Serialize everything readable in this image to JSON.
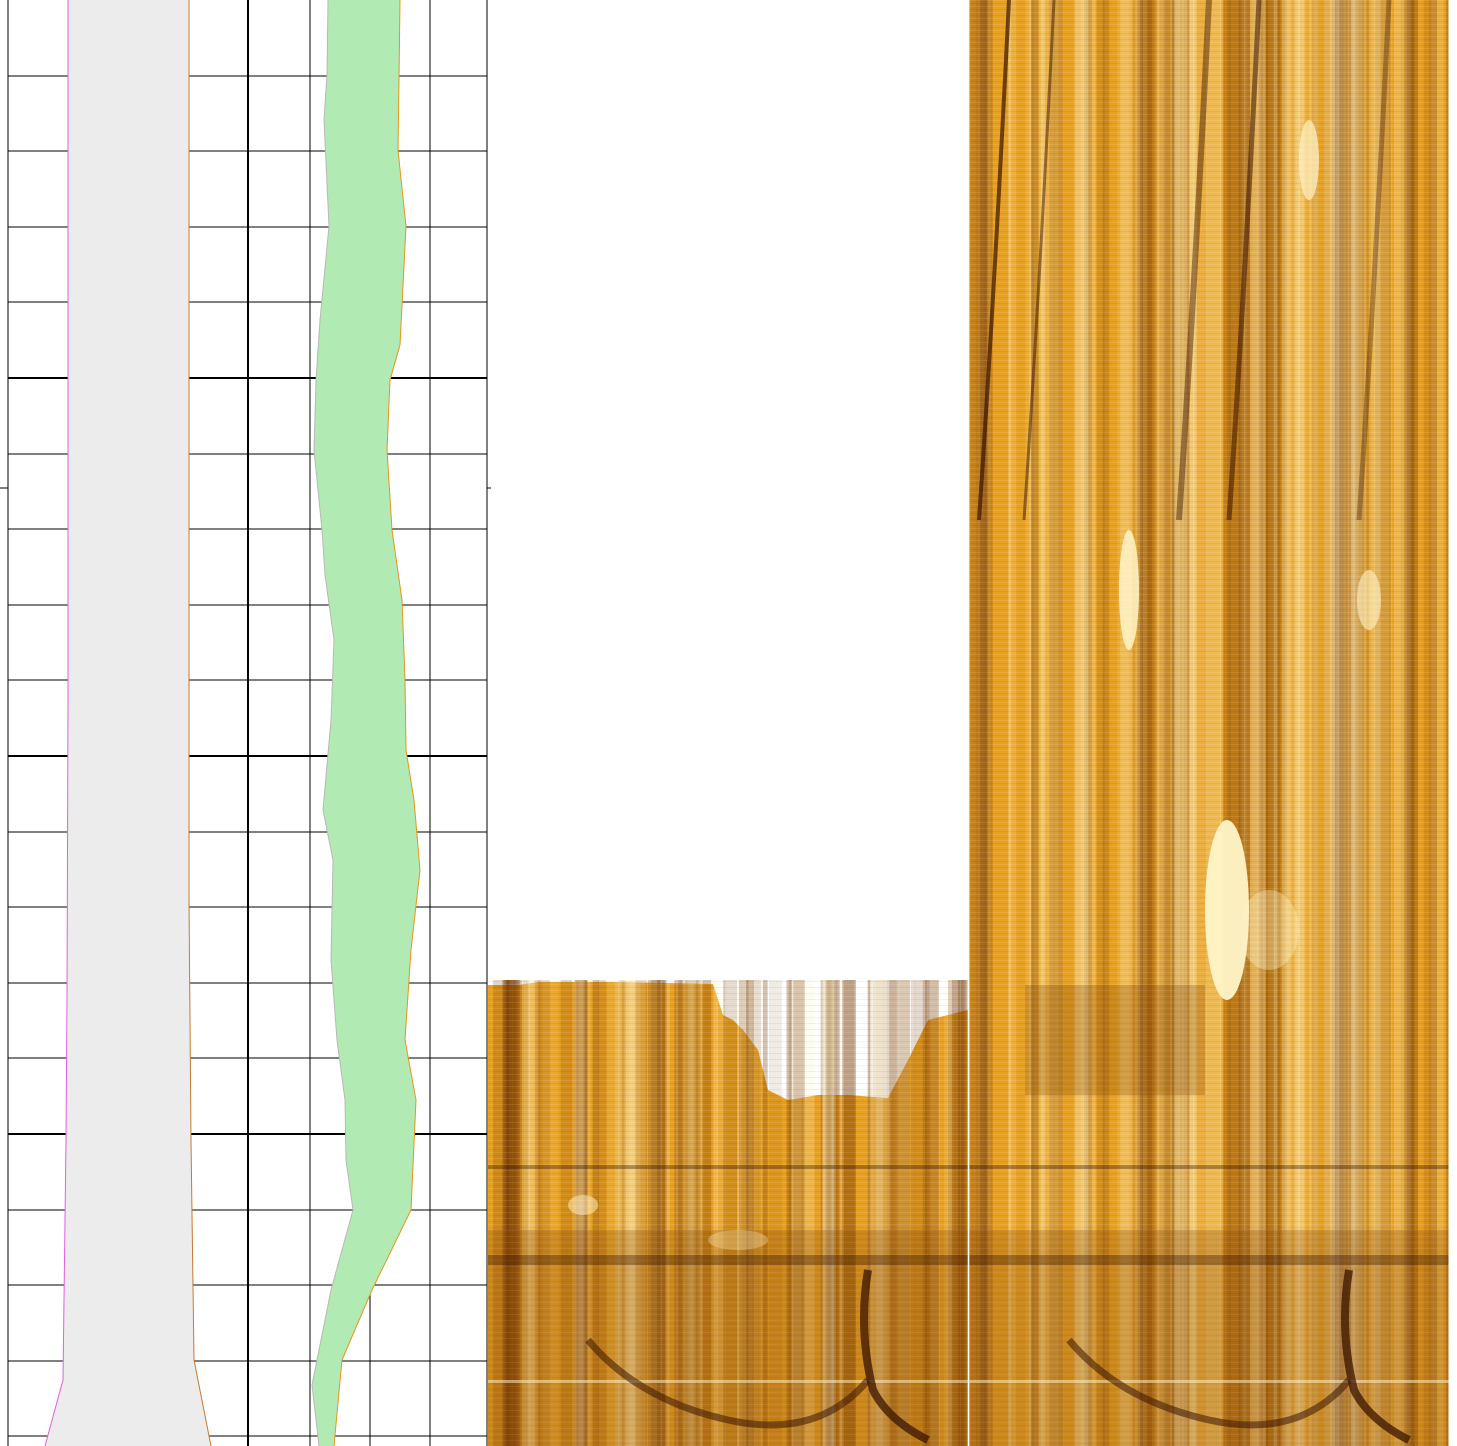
{
  "colors": {
    "background": "#ffffff",
    "grid_line": "#000000",
    "curve_left_a": "#e060e0",
    "curve_left_b": "#c87830",
    "fill_left": "#ececec",
    "fill_right": "#b2eab4",
    "curve_right": "#e8941c",
    "image_light": "#fff4c8",
    "image_mid": "#e8a020",
    "image_dark": "#7a3e06",
    "image_darkest": "#3a1400"
  },
  "tracks": [
    {
      "name": "curve-track",
      "fills": [
        "shaded-band-left",
        "shaded-band-right"
      ]
    },
    {
      "name": "static-image-track"
    },
    {
      "name": "dynamic-image-track"
    }
  ],
  "icons": []
}
